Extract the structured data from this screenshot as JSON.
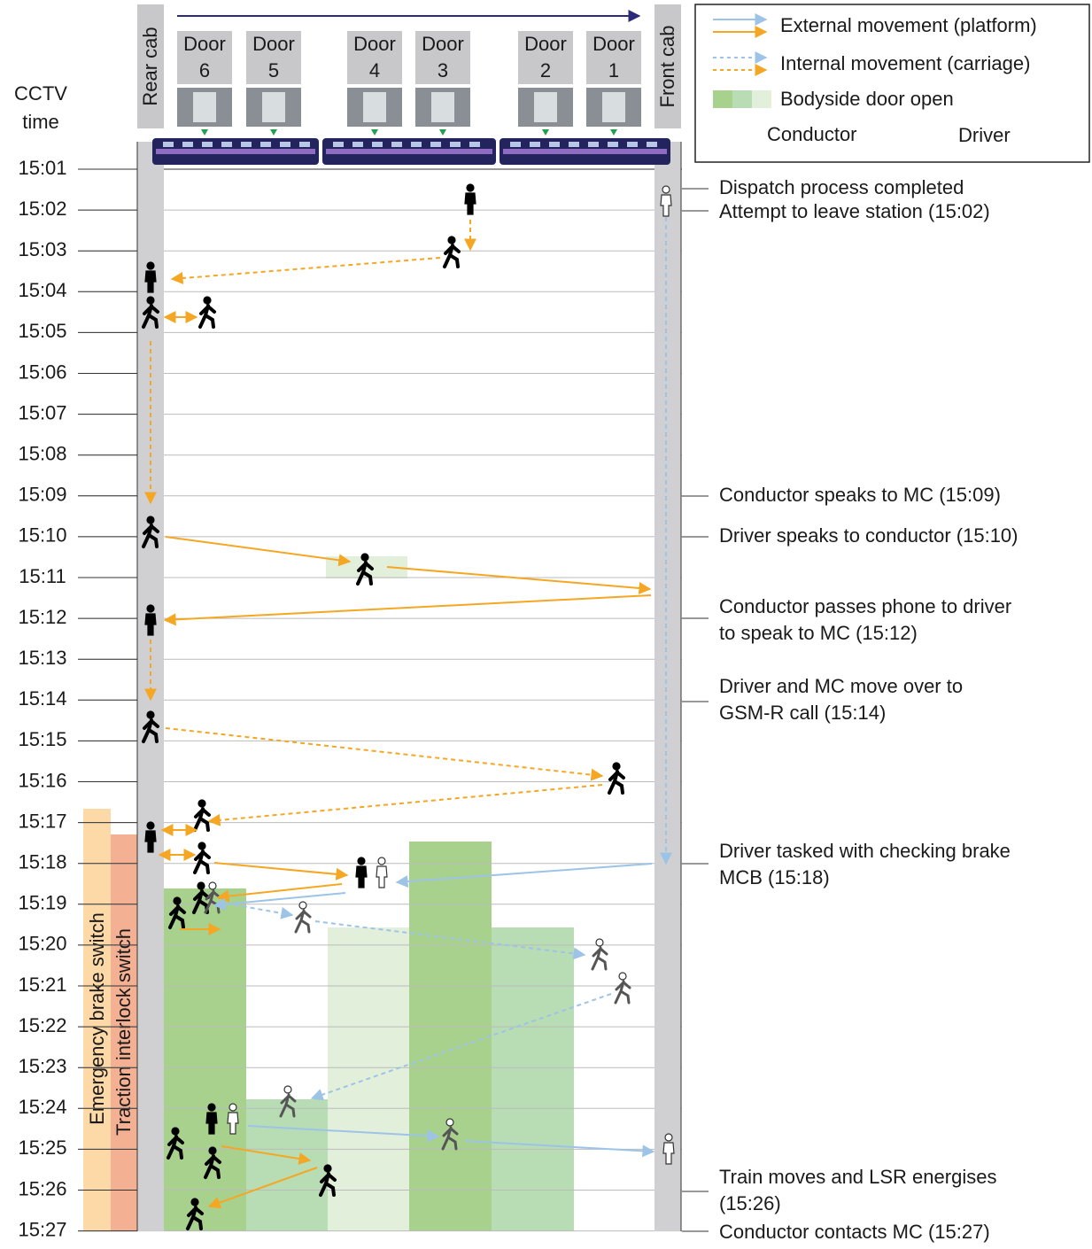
{
  "header": {
    "time_label": [
      "CCTV",
      "time"
    ],
    "rear_cab": "Rear cab",
    "front_cab": "Front cab"
  },
  "doors": [
    [
      "Door",
      "6"
    ],
    [
      "Door",
      "5"
    ],
    [
      "Door",
      "4"
    ],
    [
      "Door",
      "3"
    ],
    [
      "Door",
      "2"
    ],
    [
      "Door",
      "1"
    ]
  ],
  "times": [
    "15:01",
    "15:02",
    "15:03",
    "15:04",
    "15:05",
    "15:06",
    "15:07",
    "15:08",
    "15:09",
    "15:10",
    "15:11",
    "15:12",
    "15:13",
    "15:14",
    "15:15",
    "15:16",
    "15:17",
    "15:18",
    "15:19",
    "15:20",
    "15:21",
    "15:22",
    "15:23",
    "15:24",
    "15:25",
    "15:26",
    "15:27"
  ],
  "events": [
    [
      "Dispatch process completed"
    ],
    [
      "Attempt to leave station (15:02)"
    ],
    [
      "Conductor speaks to MC (15:09)"
    ],
    [
      "Driver speaks to conductor (15:10)"
    ],
    [
      "Conductor passes phone to driver",
      "to speak to MC (15:12)"
    ],
    [
      "Driver and MC move over to",
      "GSM-R call (15:14)"
    ],
    [
      "Driver tasked with checking brake",
      "MCB (15:18)"
    ],
    [
      "Train moves and LSR energises",
      "(15:26)"
    ],
    [
      "Conductor contacts MC (15:27)"
    ]
  ],
  "side_labels": [
    "Emergency brake switch",
    "Traction interlock switch"
  ],
  "legend": [
    "External movement (platform)",
    "Internal movement (carriage)",
    "Bodyside door open",
    "Conductor",
    "Driver"
  ]
}
